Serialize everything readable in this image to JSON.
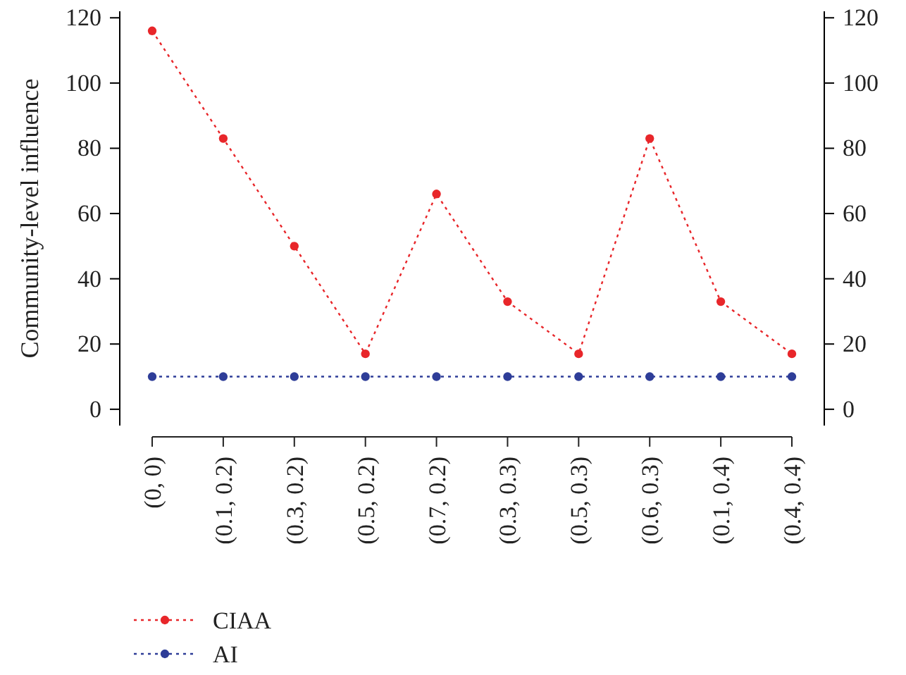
{
  "chart_data": {
    "type": "line",
    "ylabel": "Community-level influence",
    "categories": [
      "(0, 0)",
      "(0.1, 0.2)",
      "(0.3, 0.2)",
      "(0.5, 0.2)",
      "(0.7, 0.2)",
      "(0.3, 0.3)",
      "(0.5, 0.3)",
      "(0.6, 0.3)",
      "(0.1, 0.4)",
      "(0.4, 0.4)"
    ],
    "series": [
      {
        "name": "CIAA",
        "color": "#e8262a",
        "values": [
          116,
          83,
          50,
          17,
          66,
          33,
          17,
          83,
          33,
          17
        ]
      },
      {
        "name": "AI",
        "color": "#2e3d98",
        "values": [
          10,
          10,
          10,
          10,
          10,
          10,
          10,
          10,
          10,
          10
        ]
      }
    ],
    "ylim": [
      -5,
      122
    ],
    "yticks": [
      0,
      20,
      40,
      60,
      80,
      100,
      120
    ],
    "y2lim": [
      -5,
      122
    ],
    "y2ticks": [
      0,
      20,
      40,
      60,
      80,
      100,
      120
    ],
    "grid": false,
    "legend": "bottom left",
    "marker": "circle",
    "line_style": "dotted"
  }
}
